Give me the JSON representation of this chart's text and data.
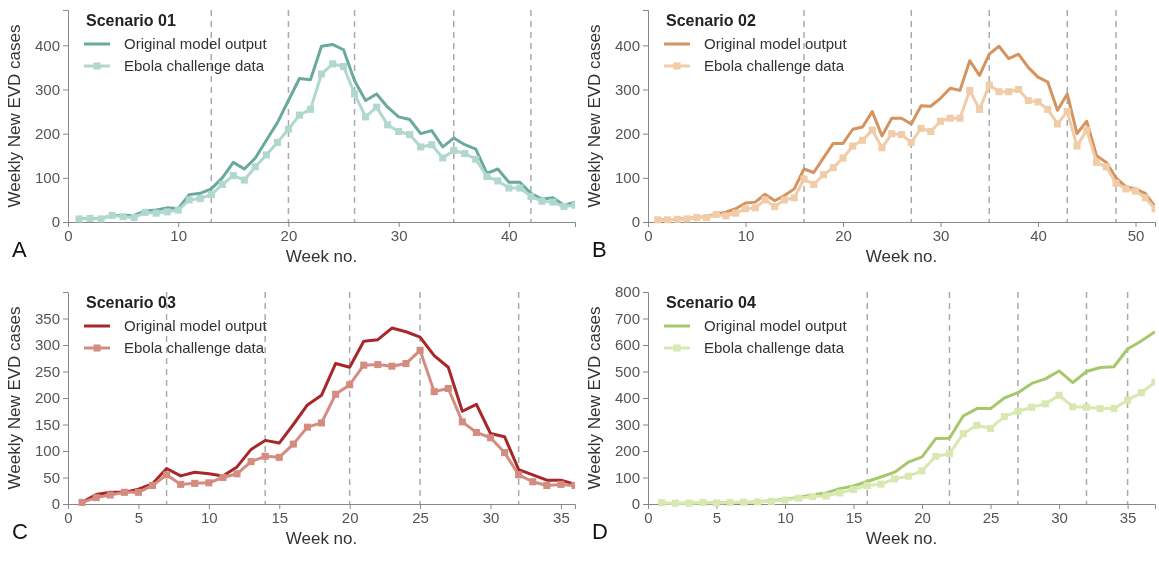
{
  "chart_data": [
    {
      "type": "line",
      "title": "Scenario 01",
      "xlabel": "Week no.",
      "ylabel": "Weekly New EVD cases",
      "annotations": [
        "A"
      ],
      "legend": "top left",
      "xlim": [
        0,
        46
      ],
      "xticks": [
        0,
        10,
        20,
        30,
        40
      ],
      "ylim": [
        0,
        480
      ],
      "yticks": [
        0,
        100,
        200,
        300,
        400
      ],
      "grid": false,
      "x": [
        1,
        2,
        3,
        4,
        5,
        6,
        7,
        8,
        9,
        10,
        11,
        12,
        13,
        14,
        15,
        16,
        17,
        18,
        19,
        20,
        21,
        22,
        23,
        24,
        25,
        26,
        27,
        28,
        29,
        30,
        31,
        32,
        33,
        34,
        35,
        36,
        37,
        38,
        39,
        40,
        41,
        42,
        43,
        44,
        45,
        46
      ],
      "ref_lines": [
        {
          "axis": "x",
          "value": 13,
          "color": "#aaaaaa",
          "line_style": "dashed"
        },
        {
          "axis": "x",
          "value": 20,
          "color": "#aaaaaa",
          "line_style": "dashed"
        },
        {
          "axis": "x",
          "value": 26,
          "color": "#aaaaaa",
          "line_style": "dashed"
        },
        {
          "axis": "x",
          "value": 35,
          "color": "#aaaaaa",
          "line_style": "dashed"
        },
        {
          "axis": "x",
          "value": 42,
          "color": "#aaaaaa",
          "line_style": "dashed"
        }
      ],
      "series": [
        {
          "name": "Original model output",
          "color": "#6aaa9c",
          "marker": "none",
          "values": [
            8,
            8,
            8,
            15,
            15,
            15,
            25,
            27,
            32,
            30,
            62,
            65,
            75,
            100,
            135,
            120,
            145,
            185,
            225,
            275,
            325,
            322,
            398,
            402,
            390,
            320,
            275,
            290,
            260,
            238,
            232,
            200,
            207,
            170,
            190,
            175,
            165,
            110,
            120,
            90,
            90,
            65,
            52,
            55,
            38,
            45
          ]
        },
        {
          "name": "Ebola challenge data",
          "color": "#b0d8cf",
          "marker": "square",
          "values": [
            7,
            8,
            7,
            15,
            12,
            10,
            22,
            20,
            23,
            27,
            50,
            53,
            62,
            85,
            105,
            95,
            125,
            152,
            180,
            210,
            242,
            255,
            335,
            358,
            352,
            290,
            238,
            260,
            220,
            205,
            198,
            170,
            175,
            145,
            162,
            155,
            142,
            103,
            93,
            77,
            77,
            58,
            47,
            45,
            35,
            38
          ]
        }
      ]
    },
    {
      "type": "line",
      "title": "Scenario 02",
      "xlabel": "Week no.",
      "ylabel": "Weekly New EVD cases",
      "annotations": [
        "B"
      ],
      "legend": "top left",
      "xlim": [
        0,
        52
      ],
      "xticks": [
        0,
        10,
        20,
        30,
        40,
        50
      ],
      "ylim": [
        0,
        480
      ],
      "yticks": [
        0,
        100,
        200,
        300,
        400
      ],
      "grid": false,
      "x": [
        1,
        2,
        3,
        4,
        5,
        6,
        7,
        8,
        9,
        10,
        11,
        12,
        13,
        14,
        15,
        16,
        17,
        18,
        19,
        20,
        21,
        22,
        23,
        24,
        25,
        26,
        27,
        28,
        29,
        30,
        31,
        32,
        33,
        34,
        35,
        36,
        37,
        38,
        39,
        40,
        41,
        42,
        43,
        44,
        45,
        46,
        47,
        48,
        49,
        50,
        51,
        52
      ],
      "ref_lines": [
        {
          "axis": "x",
          "value": 16,
          "color": "#aaaaaa",
          "line_style": "dashed"
        },
        {
          "axis": "x",
          "value": 27,
          "color": "#aaaaaa",
          "line_style": "dashed"
        },
        {
          "axis": "x",
          "value": 35,
          "color": "#aaaaaa",
          "line_style": "dashed"
        },
        {
          "axis": "x",
          "value": 43,
          "color": "#aaaaaa",
          "line_style": "dashed"
        },
        {
          "axis": "x",
          "value": 48,
          "color": "#aaaaaa",
          "line_style": "dashed"
        }
      ],
      "series": [
        {
          "name": "Original model output",
          "color": "#d4935f",
          "marker": "none",
          "values": [
            5,
            5,
            6,
            8,
            10,
            12,
            18,
            22,
            30,
            43,
            45,
            63,
            48,
            60,
            75,
            120,
            112,
            145,
            178,
            178,
            210,
            215,
            250,
            195,
            235,
            235,
            222,
            263,
            262,
            280,
            303,
            298,
            365,
            332,
            380,
            398,
            370,
            380,
            350,
            328,
            317,
            253,
            290,
            200,
            228,
            150,
            135,
            100,
            80,
            75,
            65,
            35
          ]
        },
        {
          "name": "Ebola challenge data",
          "color": "#f0cca8",
          "marker": "square",
          "values": [
            5,
            5,
            6,
            7,
            10,
            10,
            17,
            14,
            20,
            30,
            32,
            50,
            35,
            50,
            55,
            97,
            85,
            107,
            123,
            145,
            172,
            185,
            208,
            168,
            200,
            198,
            180,
            212,
            205,
            228,
            235,
            235,
            298,
            255,
            310,
            295,
            295,
            300,
            275,
            272,
            255,
            222,
            250,
            172,
            208,
            135,
            125,
            88,
            75,
            70,
            55,
            30
          ]
        }
      ]
    },
    {
      "type": "line",
      "title": "Scenario 03",
      "xlabel": "Week no.",
      "ylabel": "Weekly New EVD cases",
      "annotations": [
        "C"
      ],
      "legend": "top left",
      "xlim": [
        0,
        36
      ],
      "xticks": [
        0,
        5,
        10,
        15,
        20,
        25,
        30,
        35
      ],
      "ylim": [
        0,
        400
      ],
      "yticks": [
        0,
        50,
        100,
        150,
        200,
        250,
        300,
        350
      ],
      "grid": false,
      "x": [
        1,
        2,
        3,
        4,
        5,
        6,
        7,
        8,
        9,
        10,
        11,
        12,
        13,
        14,
        15,
        16,
        17,
        18,
        19,
        20,
        21,
        22,
        23,
        24,
        25,
        26,
        27,
        28,
        29,
        30,
        31,
        32,
        33,
        34,
        35,
        36
      ],
      "ref_lines": [
        {
          "axis": "x",
          "value": 7,
          "color": "#aaaaaa",
          "line_style": "dashed"
        },
        {
          "axis": "x",
          "value": 14,
          "color": "#aaaaaa",
          "line_style": "dashed"
        },
        {
          "axis": "x",
          "value": 20,
          "color": "#aaaaaa",
          "line_style": "dashed"
        },
        {
          "axis": "x",
          "value": 25,
          "color": "#aaaaaa",
          "line_style": "dashed"
        },
        {
          "axis": "x",
          "value": 32,
          "color": "#aaaaaa",
          "line_style": "dashed"
        }
      ],
      "series": [
        {
          "name": "Original model output",
          "color": "#a8272a",
          "marker": "none",
          "values": [
            3,
            18,
            22,
            22,
            28,
            38,
            67,
            53,
            60,
            57,
            53,
            70,
            103,
            120,
            115,
            150,
            187,
            205,
            265,
            258,
            307,
            310,
            332,
            325,
            315,
            280,
            258,
            175,
            188,
            133,
            127,
            65,
            55,
            45,
            45,
            37
          ]
        },
        {
          "name": "Ebola challenge data",
          "color": "#d48c80",
          "marker": "square",
          "values": [
            3,
            12,
            17,
            22,
            22,
            35,
            55,
            37,
            39,
            40,
            50,
            57,
            80,
            90,
            88,
            113,
            145,
            153,
            207,
            225,
            262,
            263,
            260,
            265,
            290,
            212,
            218,
            155,
            135,
            125,
            97,
            55,
            42,
            35,
            37,
            35
          ]
        }
      ]
    },
    {
      "type": "line",
      "title": "Scenario 04",
      "xlabel": "Week no.",
      "ylabel": "Weekly New EVD cases",
      "annotations": [
        "D"
      ],
      "legend": "top left",
      "xlim": [
        0,
        37
      ],
      "xticks": [
        0,
        5,
        10,
        15,
        20,
        25,
        30,
        35
      ],
      "ylim": [
        0,
        800
      ],
      "yticks": [
        0,
        100,
        200,
        300,
        400,
        500,
        600,
        700,
        800
      ],
      "grid": false,
      "x": [
        1,
        2,
        3,
        4,
        5,
        6,
        7,
        8,
        9,
        10,
        11,
        12,
        13,
        14,
        15,
        16,
        17,
        18,
        19,
        20,
        21,
        22,
        23,
        24,
        25,
        26,
        27,
        28,
        29,
        30,
        31,
        32,
        33,
        34,
        35,
        36,
        37
      ],
      "ref_lines": [
        {
          "axis": "x",
          "value": 16,
          "color": "#aaaaaa",
          "line_style": "dashed"
        },
        {
          "axis": "x",
          "value": 22,
          "color": "#aaaaaa",
          "line_style": "dashed"
        },
        {
          "axis": "x",
          "value": 27,
          "color": "#aaaaaa",
          "line_style": "dashed"
        },
        {
          "axis": "x",
          "value": 32,
          "color": "#aaaaaa",
          "line_style": "dashed"
        },
        {
          "axis": "x",
          "value": 35,
          "color": "#aaaaaa",
          "line_style": "dashed"
        }
      ],
      "series": [
        {
          "name": "Original model output",
          "color": "#a5c96a",
          "marker": "none",
          "values": [
            2,
            2,
            3,
            4,
            5,
            6,
            7,
            8,
            12,
            18,
            25,
            35,
            42,
            58,
            68,
            85,
            102,
            120,
            158,
            178,
            247,
            248,
            332,
            360,
            360,
            400,
            420,
            455,
            472,
            502,
            458,
            500,
            515,
            518,
            585,
            615,
            650
          ]
        },
        {
          "name": "Ebola challenge data",
          "color": "#d8e8b0",
          "marker": "square",
          "values": [
            5,
            3,
            3,
            6,
            4,
            6,
            7,
            8,
            10,
            15,
            22,
            28,
            30,
            42,
            55,
            70,
            75,
            95,
            105,
            125,
            180,
            190,
            265,
            297,
            285,
            330,
            350,
            365,
            378,
            410,
            367,
            365,
            360,
            360,
            392,
            420,
            460
          ]
        }
      ]
    }
  ]
}
